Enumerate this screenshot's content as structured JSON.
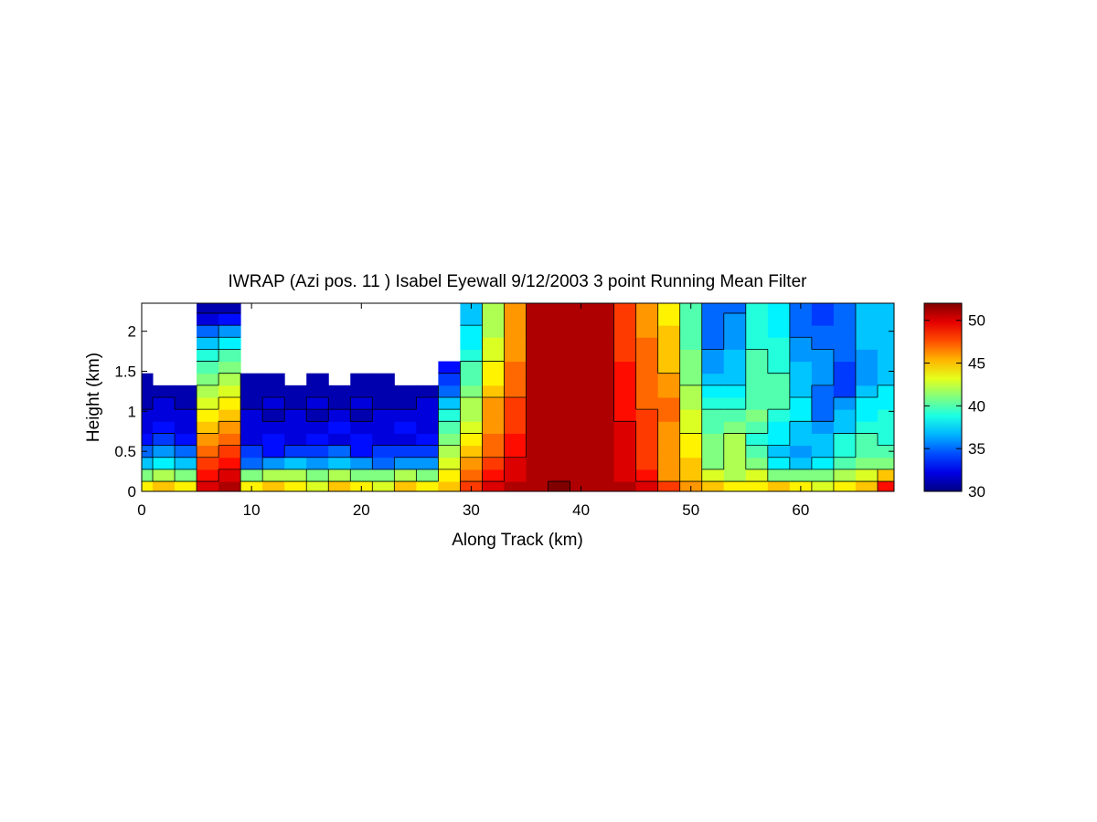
{
  "chart_data": {
    "type": "heatmap",
    "title": "IWRAP (Azi pos. 11 ) Isabel Eyewall 9/12/2003 3 point Running Mean Filter",
    "xlabel": "Along Track (km)",
    "ylabel": "Height (km)",
    "xlim": [
      0,
      68.5
    ],
    "ylim": [
      0,
      2.35
    ],
    "x_ticks": [
      0,
      10,
      20,
      30,
      40,
      50,
      60
    ],
    "y_ticks": [
      0,
      0.5,
      1,
      1.5,
      2
    ],
    "x_tick_labels": [
      "0",
      "10",
      "20",
      "30",
      "40",
      "50",
      "60"
    ],
    "y_tick_labels": [
      "0",
      "0.5",
      "1",
      "1.5",
      "2"
    ],
    "colorbar": {
      "range": [
        30,
        52
      ],
      "ticks": [
        30,
        35,
        40,
        45,
        50
      ],
      "tick_labels": [
        "30",
        "35",
        "40",
        "45",
        "50"
      ],
      "colormap": "jet"
    },
    "style": "filled contour with black contour lines",
    "grid": false,
    "x": [
      0,
      2,
      4,
      6,
      8,
      10,
      12,
      14,
      16,
      18,
      20,
      22,
      24,
      26,
      28,
      30,
      32,
      34,
      36,
      38,
      40,
      42,
      44,
      46,
      48,
      50,
      52,
      54,
      56,
      58,
      60,
      62,
      64,
      66,
      68
    ],
    "y": [
      0.05,
      0.2,
      0.35,
      0.5,
      0.65,
      0.8,
      0.95,
      1.1,
      1.25,
      1.4,
      1.55,
      1.7,
      1.85,
      2.0,
      2.15,
      2.3
    ],
    "z": [
      [
        44,
        45,
        44,
        50,
        51,
        44,
        45,
        44,
        43,
        45,
        44,
        43,
        45,
        44,
        45,
        48,
        50,
        51,
        51,
        52,
        51,
        51,
        51,
        50,
        48,
        46,
        45,
        44,
        44,
        45,
        44,
        43,
        44,
        45,
        49
      ],
      [
        41,
        42,
        41,
        49,
        50,
        41,
        42,
        42,
        41,
        42,
        41,
        41,
        42,
        41,
        44,
        47,
        49,
        50,
        51,
        51,
        51,
        51,
        50,
        49,
        46,
        45,
        43,
        42,
        43,
        41,
        41,
        41,
        42,
        43,
        45
      ],
      [
        37,
        38,
        37,
        48,
        49,
        35,
        36,
        37,
        36,
        37,
        36,
        35,
        36,
        36,
        43,
        46,
        48,
        50,
        51,
        51,
        51,
        51,
        50,
        48,
        46,
        45,
        41,
        42,
        41,
        38,
        37,
        38,
        40,
        41,
        41
      ],
      [
        35,
        36,
        35,
        47,
        48,
        34,
        33,
        34,
        34,
        35,
        33,
        34,
        34,
        34,
        42,
        45,
        47,
        49,
        51,
        51,
        51,
        51,
        50,
        48,
        46,
        44,
        41,
        42,
        40,
        37,
        36,
        37,
        39,
        40,
        40
      ],
      [
        33,
        34,
        33,
        46,
        47,
        32,
        33,
        32,
        33,
        32,
        33,
        32,
        32,
        33,
        41,
        44,
        47,
        49,
        51,
        51,
        51,
        51,
        50,
        48,
        46,
        44,
        41,
        42,
        39,
        38,
        37,
        37,
        39,
        40,
        39
      ],
      [
        32,
        33,
        32,
        45,
        46,
        32,
        32,
        32,
        32,
        33,
        32,
        32,
        33,
        32,
        40,
        43,
        46,
        48,
        51,
        51,
        51,
        51,
        50,
        48,
        46,
        43,
        40,
        41,
        40,
        38,
        37,
        36,
        37,
        39,
        39
      ],
      [
        32,
        32,
        32,
        44,
        45,
        32,
        31,
        32,
        31,
        32,
        31,
        32,
        32,
        32,
        39,
        42,
        46,
        48,
        51,
        51,
        51,
        51,
        49,
        48,
        47,
        43,
        40,
        40,
        41,
        39,
        38,
        35,
        37,
        38,
        39
      ],
      [
        31,
        32,
        31,
        43,
        44,
        31,
        32,
        31,
        32,
        31,
        32,
        31,
        31,
        32,
        37,
        42,
        46,
        48,
        51,
        51,
        51,
        51,
        49,
        47,
        47,
        42,
        39,
        39,
        40,
        40,
        38,
        35,
        36,
        38,
        38
      ],
      [
        31,
        31,
        31,
        42,
        43,
        31,
        31,
        31,
        31,
        31,
        31,
        31,
        31,
        31,
        35,
        41,
        45,
        47,
        51,
        51,
        51,
        51,
        49,
        47,
        46,
        42,
        38,
        38,
        40,
        40,
        37,
        35,
        34,
        37,
        38
      ],
      [
        31,
        null,
        null,
        41,
        42,
        31,
        31,
        null,
        31,
        null,
        31,
        31,
        null,
        null,
        34,
        40,
        44,
        47,
        51,
        51,
        51,
        51,
        49,
        47,
        46,
        41,
        37,
        37,
        40,
        40,
        37,
        36,
        34,
        36,
        37
      ],
      [
        null,
        null,
        null,
        40,
        41,
        null,
        null,
        null,
        null,
        null,
        null,
        null,
        null,
        null,
        33,
        40,
        44,
        47,
        51,
        51,
        51,
        51,
        49,
        47,
        45,
        41,
        36,
        37,
        40,
        39,
        37,
        36,
        34,
        36,
        37
      ],
      [
        null,
        null,
        null,
        39,
        40,
        null,
        null,
        null,
        null,
        null,
        null,
        null,
        null,
        null,
        null,
        39,
        43,
        46,
        51,
        51,
        51,
        51,
        48,
        47,
        45,
        41,
        36,
        37,
        40,
        39,
        36,
        36,
        35,
        36,
        37
      ],
      [
        null,
        null,
        null,
        37,
        38,
        null,
        null,
        null,
        null,
        null,
        null,
        null,
        null,
        null,
        null,
        38,
        43,
        46,
        51,
        51,
        51,
        51,
        48,
        47,
        45,
        40,
        35,
        36,
        39,
        39,
        36,
        35,
        35,
        37,
        37
      ],
      [
        null,
        null,
        null,
        35,
        36,
        null,
        null,
        null,
        null,
        null,
        null,
        null,
        null,
        null,
        null,
        38,
        42,
        46,
        51,
        51,
        51,
        51,
        48,
        46,
        45,
        40,
        35,
        36,
        39,
        38,
        35,
        35,
        35,
        37,
        37
      ],
      [
        null,
        null,
        null,
        32,
        33,
        null,
        null,
        null,
        null,
        null,
        null,
        null,
        null,
        null,
        null,
        37,
        42,
        46,
        51,
        51,
        51,
        51,
        48,
        46,
        44,
        40,
        35,
        36,
        39,
        38,
        35,
        34,
        35,
        37,
        37
      ],
      [
        null,
        null,
        null,
        31,
        31,
        null,
        null,
        null,
        null,
        null,
        null,
        null,
        null,
        null,
        null,
        37,
        42,
        46,
        51,
        51,
        51,
        51,
        48,
        46,
        44,
        40,
        35,
        35,
        39,
        38,
        35,
        34,
        35,
        37,
        37
      ]
    ]
  }
}
